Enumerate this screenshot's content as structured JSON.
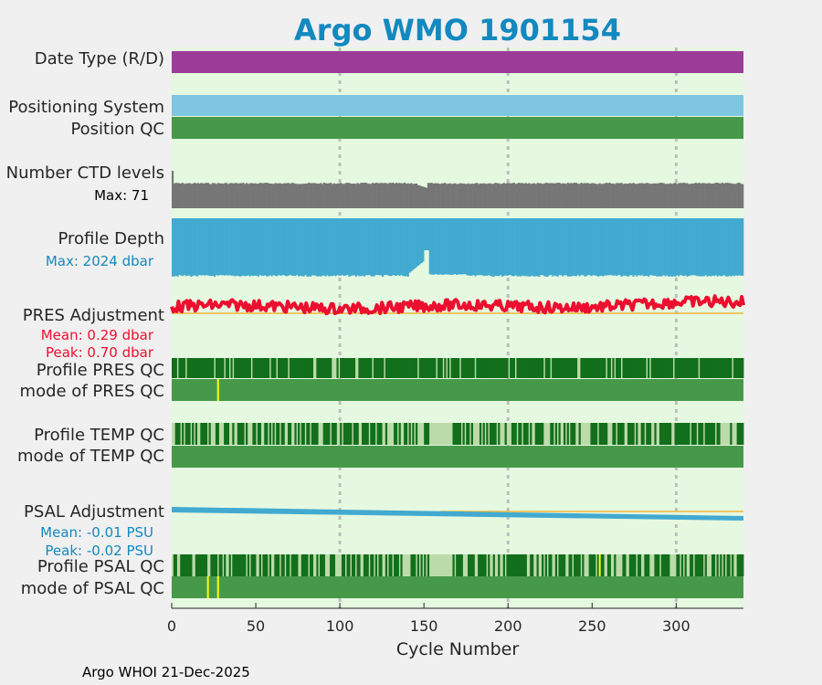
{
  "chart_data": {
    "type": "timeline",
    "title": "Argo WMO 1901154",
    "xlabel": "Cycle Number",
    "xlim": [
      0,
      340
    ],
    "x_ticks": [
      "0",
      "50",
      "100",
      "150",
      "200",
      "250",
      "300"
    ],
    "x_tick_values": [
      0,
      50,
      100,
      150,
      200,
      250,
      300
    ],
    "grid_x_values": [
      100,
      200,
      300
    ],
    "rows": {
      "date_type": {
        "label": "Date Type (R/D)",
        "color": "#9b3c99"
      },
      "positioning_system": {
        "label": "Positioning System",
        "color": "#7fc6e0"
      },
      "position_qc": {
        "label": "Position QC",
        "color": "#47994a"
      },
      "ctd_levels": {
        "label": "Number CTD levels",
        "sub": "Max: 71",
        "max": 71,
        "color": "#767676"
      },
      "profile_depth": {
        "label": "Profile Depth",
        "sub": "Max: 2024 dbar",
        "max": 2024,
        "unit": "dbar",
        "color": "#42aad0"
      },
      "pres_adjustment": {
        "label": "PRES Adjustment",
        "sub_mean": "Mean: 0.29 dbar",
        "sub_peak": "Peak: 0.70 dbar",
        "mean": 0.29,
        "peak": 0.7,
        "color": "#ec0f2f"
      },
      "profile_pres_qc": {
        "label": "Profile PRES QC"
      },
      "mode_pres_qc": {
        "label": "mode of PRES QC",
        "flag_cycles": [
          27
        ]
      },
      "profile_temp_qc": {
        "label": "Profile TEMP QC",
        "light_range": [
          153,
          166
        ]
      },
      "mode_temp_qc": {
        "label": "mode of TEMP QC"
      },
      "psal_adjustment": {
        "label": "PSAL Adjustment",
        "sub_mean": "Mean: -0.01 PSU",
        "sub_peak": "Peak: -0.02 PSU",
        "mean": -0.01,
        "peak": -0.02,
        "color": "#42aad0"
      },
      "profile_psal_qc": {
        "label": "Profile PSAL QC",
        "light_range": [
          153,
          166
        ],
        "flag_cycles": [
          254
        ]
      },
      "mode_psal_qc": {
        "label": "mode of PSAL QC",
        "flag_cycles": [
          21,
          27
        ]
      }
    },
    "colors": {
      "background": "#e5f8e0",
      "qc_good": "#47994a",
      "qc_dark": "#126f1b",
      "qc_light": "#bcdbaa",
      "flag": "#ffff00",
      "reference_line": "#f0b63a",
      "grid": "#bdbdbd",
      "title": "#1289bf",
      "sub_blue": "#1289bf",
      "sub_red": "#ec0f2f"
    }
  },
  "footer": "Argo WHOI 21-Dec-2025"
}
